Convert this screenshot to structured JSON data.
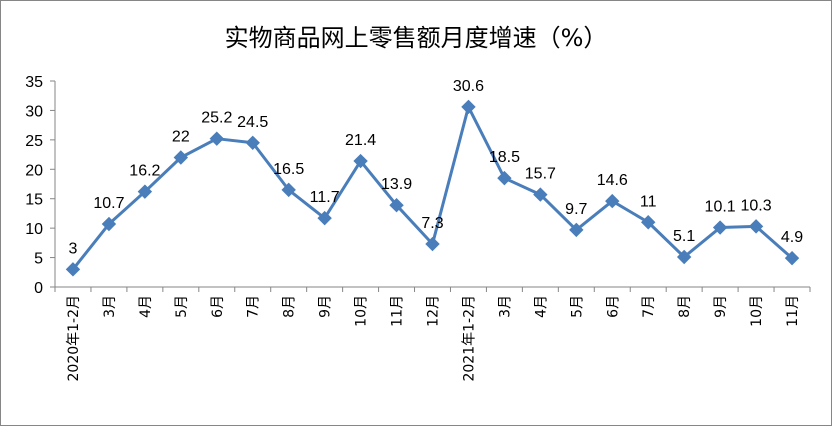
{
  "chart_data": {
    "type": "line",
    "title": "实物商品网上零售额月度增速（%）",
    "xlabel": "",
    "ylabel": "",
    "categories": [
      "2020年1-2月",
      "3月",
      "4月",
      "5月",
      "6月",
      "7月",
      "8月",
      "9月",
      "10月",
      "11月",
      "12月",
      "2021年1-2月",
      "3月",
      "4月",
      "5月",
      "6月",
      "7月",
      "8月",
      "9月",
      "10月",
      "11月"
    ],
    "values": [
      3,
      10.7,
      16.2,
      22,
      25.2,
      24.5,
      16.5,
      11.7,
      21.4,
      13.9,
      7.3,
      30.6,
      18.5,
      15.7,
      9.7,
      14.6,
      11,
      5.1,
      10.1,
      10.3,
      4.9
    ],
    "data_labels": [
      "3",
      "10.7",
      "16.2",
      "22",
      "25.2",
      "24.5",
      "16.5",
      "11.7",
      "21.4",
      "13.9",
      "7.3",
      "30.6",
      "18.5",
      "15.7",
      "9.7",
      "14.6",
      "11",
      "5.1",
      "10.1",
      "10.3",
      "4.9"
    ],
    "ylim": [
      0,
      35
    ],
    "yticks": [
      0,
      5,
      10,
      15,
      20,
      25,
      30,
      35
    ],
    "grid": false,
    "legend": "none",
    "colors": {
      "line": "#4A7EBB",
      "marker": "#4A7EBB",
      "axis": "#868686"
    }
  }
}
